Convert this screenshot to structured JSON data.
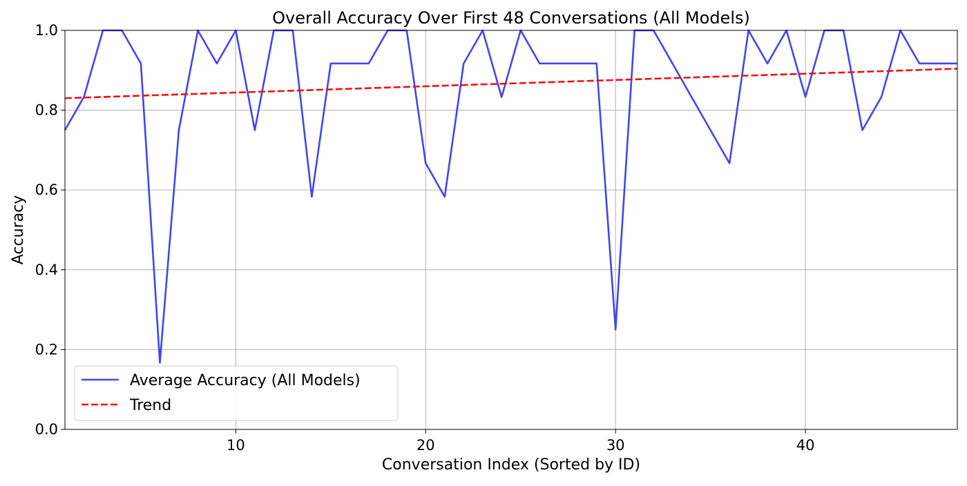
{
  "chart_data": {
    "type": "line",
    "title": "Overall Accuracy Over First 48 Conversations (All Models)",
    "xlabel": "Conversation Index (Sorted by ID)",
    "ylabel": "Accuracy",
    "xlim": [
      1,
      48
    ],
    "ylim": [
      0,
      1.0
    ],
    "x_ticks": [
      10,
      20,
      30,
      40
    ],
    "x_tick_labels": [
      "10",
      "20",
      "30",
      "40"
    ],
    "y_ticks": [
      0,
      0.2,
      0.4,
      0.6,
      0.8,
      1.0
    ],
    "y_tick_labels": [
      "0.0",
      "0.2",
      "0.4",
      "0.6",
      "0.8",
      "1.0"
    ],
    "grid": true,
    "legend_position": "lower-left",
    "series": [
      {
        "name": "Average Accuracy (All Models)",
        "color": "#4444ee",
        "style": "solid",
        "x": [
          1,
          2,
          3,
          4,
          5,
          6,
          7,
          8,
          9,
          10,
          11,
          12,
          13,
          14,
          15,
          16,
          17,
          18,
          19,
          20,
          21,
          22,
          23,
          24,
          25,
          26,
          27,
          28,
          29,
          30,
          31,
          32,
          33,
          34,
          35,
          36,
          37,
          38,
          39,
          40,
          41,
          42,
          43,
          44,
          45,
          46,
          47,
          48
        ],
        "values": [
          0.75,
          0.833,
          1.0,
          1.0,
          0.917,
          0.167,
          0.75,
          1.0,
          0.917,
          1.0,
          0.75,
          1.0,
          1.0,
          0.583,
          0.917,
          0.917,
          0.917,
          1.0,
          1.0,
          0.667,
          0.583,
          0.917,
          1.0,
          0.833,
          1.0,
          0.917,
          0.917,
          0.917,
          0.917,
          0.25,
          1.0,
          1.0,
          0.917,
          0.833,
          0.75,
          0.667,
          1.0,
          0.917,
          1.0,
          0.833,
          1.0,
          1.0,
          0.75,
          0.833,
          1.0,
          0.917,
          0.917,
          0.917
        ]
      },
      {
        "name": "Trend",
        "color": "#ee1111",
        "style": "dashed",
        "x": [
          1,
          48
        ],
        "values": [
          0.83,
          0.904
        ]
      }
    ]
  }
}
